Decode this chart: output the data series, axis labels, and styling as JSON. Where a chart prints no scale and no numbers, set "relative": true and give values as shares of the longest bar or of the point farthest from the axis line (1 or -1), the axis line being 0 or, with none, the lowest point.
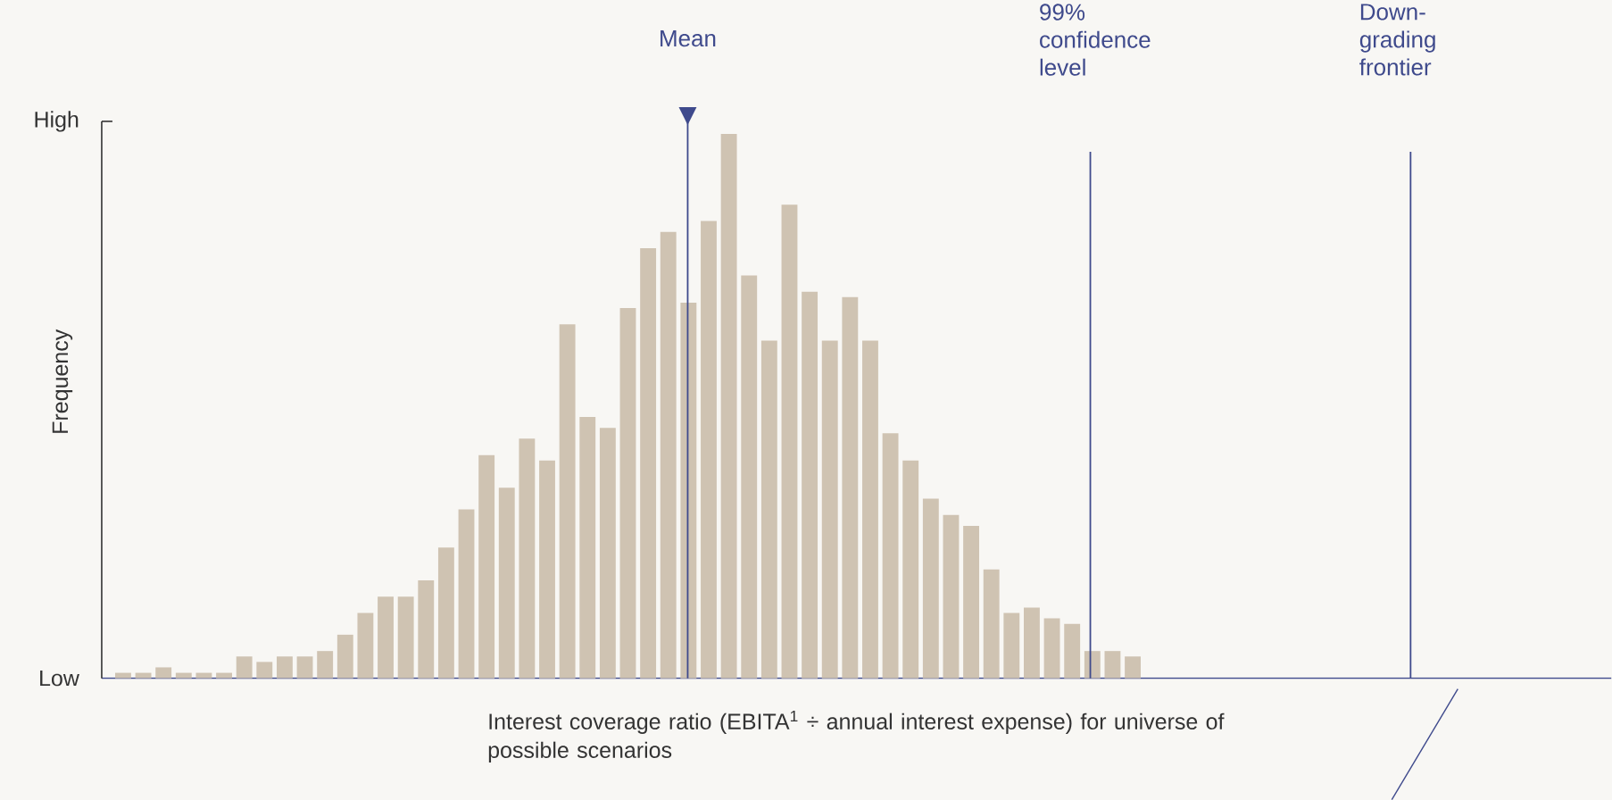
{
  "chart_data": {
    "type": "bar",
    "relative": true,
    "tick_labels": false,
    "ylabel": "Frequency",
    "xlabel": "Interest coverage ratio (EBITA$^{1}$ ÷ annual interest expense) for universe of possible scenarios",
    "annotations": [
      "High",
      "Low",
      "Mean",
      "99% confidence level",
      "Down-grading frontier"
    ],
    "categories": [
      null,
      null,
      null,
      null,
      null,
      null,
      null,
      null,
      null,
      null,
      null,
      null,
      null,
      null,
      null,
      null,
      null,
      null,
      null,
      null,
      null,
      null,
      null,
      null,
      null,
      null,
      null,
      null,
      null,
      null,
      null,
      null,
      null,
      null,
      null,
      null,
      null,
      null,
      null,
      null,
      null,
      null,
      null,
      null,
      null,
      null,
      null,
      null,
      null,
      null,
      null
    ],
    "color": "#cfc3b2",
    "values": [
      0.01,
      0.01,
      0.02,
      0.01,
      0.01,
      0.01,
      0.04,
      0.03,
      0.04,
      0.04,
      0.05,
      0.08,
      0.12,
      0.15,
      0.15,
      0.18,
      0.24,
      0.31,
      0.41,
      0.35,
      0.44,
      0.4,
      0.65,
      0.48,
      0.46,
      0.68,
      0.79,
      0.82,
      0.69,
      0.84,
      1,
      0.74,
      0.62,
      0.87,
      0.71,
      0.62,
      0.7,
      0.62,
      0.45,
      0.4,
      0.33,
      0.3,
      0.28,
      0.2,
      0.12,
      0.13,
      0.11,
      0.1,
      0.05,
      0.05,
      0.04
    ]
  }
}
